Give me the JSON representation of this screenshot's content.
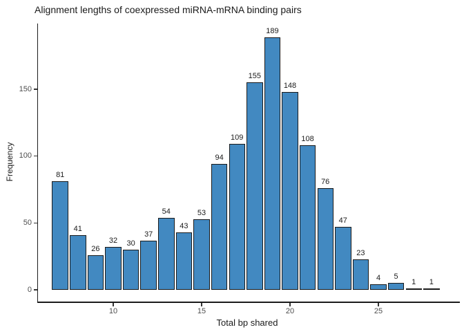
{
  "chart_data": {
    "type": "bar",
    "title": "Alignment lengths of coexpressed miRNA-mRNA binding pairs",
    "xlabel": "Total bp shared",
    "ylabel": "Frequency",
    "x": [
      7,
      8,
      9,
      10,
      11,
      12,
      13,
      14,
      15,
      16,
      17,
      18,
      19,
      20,
      21,
      22,
      23,
      24,
      25,
      26,
      27,
      28
    ],
    "values": [
      81,
      41,
      26,
      32,
      30,
      37,
      54,
      43,
      53,
      94,
      109,
      155,
      189,
      148,
      108,
      76,
      47,
      23,
      4,
      5,
      1,
      1
    ],
    "bar_value_labels_shown": true,
    "xticks": [
      10,
      15,
      20,
      25
    ],
    "yticks": [
      0,
      50,
      100,
      150
    ],
    "xlim": [
      5.6,
      29.6
    ],
    "ylim": [
      -9.5,
      198.5
    ],
    "grid": "off",
    "legend": "none",
    "colors": {
      "bar_fill": "#4289c1",
      "bar_stroke": "#1a1a1a",
      "axis_line": "#1a1a1a",
      "tick_label": "#4d4d4d",
      "background": "#ffffff"
    }
  }
}
